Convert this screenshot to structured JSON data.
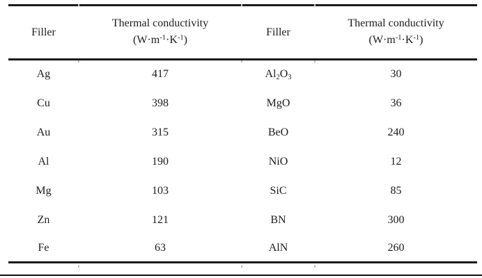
{
  "table": {
    "rule_color": "#1a1a1a",
    "column_groups": [
      {
        "filler_header": "Filler",
        "conductivity_header_line1": "Thermal conductivity",
        "conductivity_header_line2": "(W·m⁻¹·K⁻¹)"
      },
      {
        "filler_header": "Filler",
        "conductivity_header_line1": "Thermal conductivity",
        "conductivity_header_line2": "(W·m⁻¹·K⁻¹)"
      }
    ],
    "rows": [
      {
        "filler_left": "Ag",
        "conductivity_left": "417",
        "filler_right": "Al₂O₃",
        "conductivity_right": "30"
      },
      {
        "filler_left": "Cu",
        "conductivity_left": "398",
        "filler_right": "MgO",
        "conductivity_right": "36"
      },
      {
        "filler_left": "Au",
        "conductivity_left": "315",
        "filler_right": "BeO",
        "conductivity_right": "240"
      },
      {
        "filler_left": "Al",
        "conductivity_left": "190",
        "filler_right": "NiO",
        "conductivity_right": "12"
      },
      {
        "filler_left": "Mg",
        "conductivity_left": "103",
        "filler_right": "SiC",
        "conductivity_right": "85"
      },
      {
        "filler_left": "Zn",
        "conductivity_left": "121",
        "filler_right": "BN",
        "conductivity_right": "300"
      },
      {
        "filler_left": "Fe",
        "conductivity_left": "63",
        "filler_right": "AlN",
        "conductivity_right": "260"
      }
    ]
  },
  "chart_data": {
    "type": "table",
    "columns": [
      "Filler",
      "Thermal conductivity (W·m⁻¹·K⁻¹)",
      "Filler",
      "Thermal conductivity (W·m⁻¹·K⁻¹)"
    ],
    "rows": [
      [
        "Ag",
        417,
        "Al₂O₃",
        30
      ],
      [
        "Cu",
        398,
        "MgO",
        36
      ],
      [
        "Au",
        315,
        "BeO",
        240
      ],
      [
        "Al",
        190,
        "NiO",
        12
      ],
      [
        "Mg",
        103,
        "SiC",
        85
      ],
      [
        "Zn",
        121,
        "BN",
        300
      ],
      [
        "Fe",
        63,
        "AlN",
        260
      ]
    ]
  }
}
